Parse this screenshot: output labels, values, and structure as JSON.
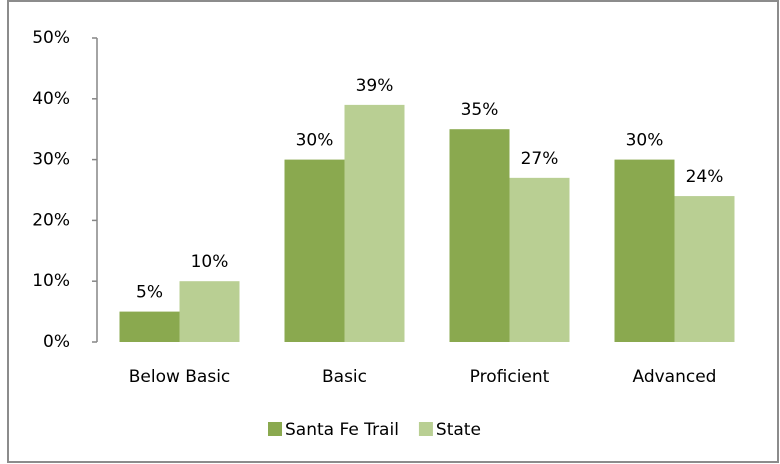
{
  "chart_data": {
    "type": "bar",
    "categories": [
      "Below Basic",
      "Basic",
      "Proficient",
      "Advanced"
    ],
    "series": [
      {
        "name": "Santa Fe Trail",
        "color": "#8aa94f",
        "values": [
          5,
          30,
          35,
          30
        ],
        "value_labels": [
          "5%",
          "30%",
          "35%",
          "30%"
        ]
      },
      {
        "name": "State",
        "color": "#b9cf93",
        "values": [
          10,
          39,
          27,
          24
        ],
        "value_labels": [
          "10%",
          "39%",
          "27%",
          "24%"
        ]
      }
    ],
    "ylim": [
      0,
      50
    ],
    "yticks": [
      {
        "value": 0,
        "label": "0%"
      },
      {
        "value": 10,
        "label": "10%"
      },
      {
        "value": 20,
        "label": "20%"
      },
      {
        "value": 30,
        "label": "30%"
      },
      {
        "value": 40,
        "label": "40%"
      },
      {
        "value": 50,
        "label": "50%"
      }
    ],
    "grid": false,
    "legend": "bottom"
  }
}
